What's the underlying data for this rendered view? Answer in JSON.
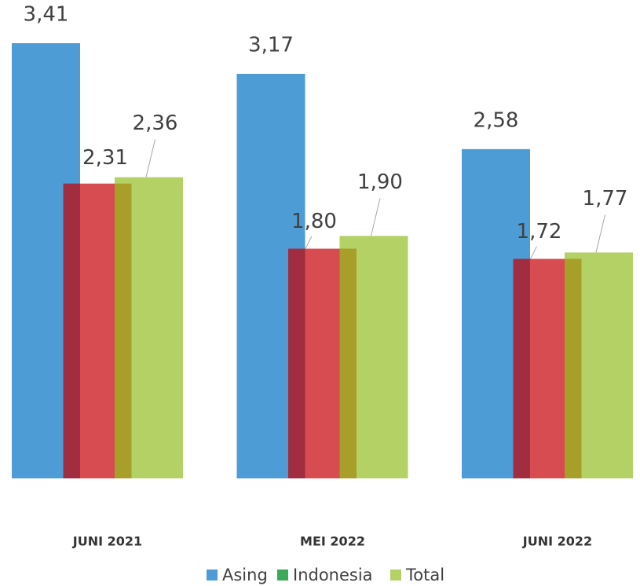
{
  "chart_data": {
    "type": "bar",
    "categories": [
      "JUNI 2021",
      "MEI 2022",
      "JUNI 2022"
    ],
    "series": [
      {
        "name": "Asing",
        "color": "#4e9cd6",
        "values": [
          3.41,
          3.17,
          2.58
        ],
        "value_labels": [
          "3,41",
          "3,17",
          "2,58"
        ]
      },
      {
        "name": "Indonesia",
        "color": "#d64c50",
        "legend_color": "#3aa95a",
        "values": [
          2.31,
          1.8,
          1.72
        ],
        "value_labels": [
          "2,31",
          "1,80",
          "1,72"
        ]
      },
      {
        "name": "Total",
        "color": "#b4d165",
        "values": [
          2.36,
          1.9,
          1.77
        ],
        "value_labels": [
          "2,36",
          "1,90",
          "1,77"
        ]
      }
    ],
    "ylim": [
      0,
      3.41
    ]
  }
}
